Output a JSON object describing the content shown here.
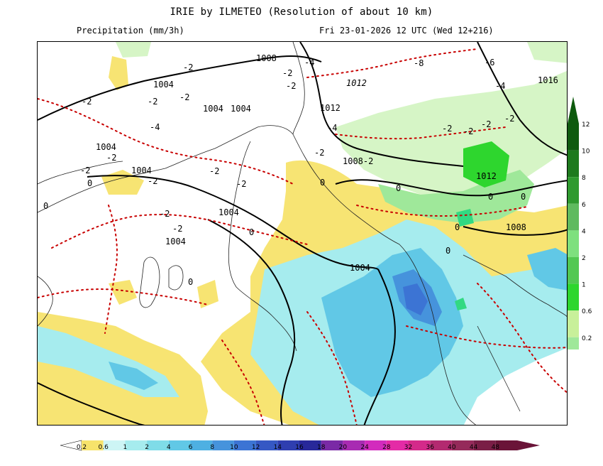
{
  "header": {
    "title": "IRIE by ILMETEO (Resolution of about 10 km)",
    "variable": "Precipitation (mm/3h)",
    "valid_time": "Fri 23-01-2026 12 UTC (Wed 12+216)"
  },
  "colors": {
    "precip_scale": [
      "#ffffff",
      "#f7e36b",
      "#cdf5f5",
      "#a6ecee",
      "#7fdce8",
      "#61c8e6",
      "#4eb0e2",
      "#4693dc",
      "#3c74d4",
      "#3558c4",
      "#2f3eb0",
      "#28289a",
      "#7a2aa6",
      "#a82bb2",
      "#d22bbd",
      "#e42ba6",
      "#d42a8a",
      "#b32a70",
      "#952a5a",
      "#7a1e46",
      "#6a1438"
    ],
    "right_scale": [
      "#d6f5c6",
      "#32d982",
      "#9fe89a",
      "#c8f09a",
      "#2ed62e",
      "#52c852",
      "#7ee07e",
      "#5fba5f",
      "#2f9a2f",
      "#1e7a1e",
      "#0e5a0e"
    ],
    "isobar": "#000000",
    "temperature_line": "#c80000",
    "coastline": "#222222"
  },
  "legends": {
    "bottom": {
      "labels": [
        "0.2",
        "0.6",
        "1",
        "2",
        "4",
        "6",
        "8",
        "10",
        "12",
        "14",
        "16",
        "18",
        "20",
        "24",
        "28",
        "32",
        "36",
        "40",
        "44",
        "48"
      ]
    },
    "right": {
      "labels": [
        "12",
        "10",
        "8",
        "6",
        "4",
        "2",
        "1",
        "0.6",
        "0.2"
      ]
    }
  },
  "map_labels": {
    "isobars": [
      "1008",
      "1012",
      "1016",
      "1004",
      "1004",
      "1004",
      "1004",
      "1008-2",
      "1012",
      "1004",
      "1004",
      "1004",
      "1004",
      "1008",
      "1012"
    ],
    "temperatures": [
      "-2",
      "-2",
      "-2",
      "-2",
      "-2",
      "-2",
      "-4",
      "-4",
      "-6",
      "-8",
      "-4",
      "-4",
      "-2",
      "-2",
      "-2",
      "-2",
      "-2",
      "-2",
      "-2",
      "-2",
      "-2",
      "-2",
      "-2",
      "-2",
      "0",
      "0",
      "0",
      "0",
      "0",
      "0",
      "0",
      "0",
      "0",
      "0"
    ]
  }
}
